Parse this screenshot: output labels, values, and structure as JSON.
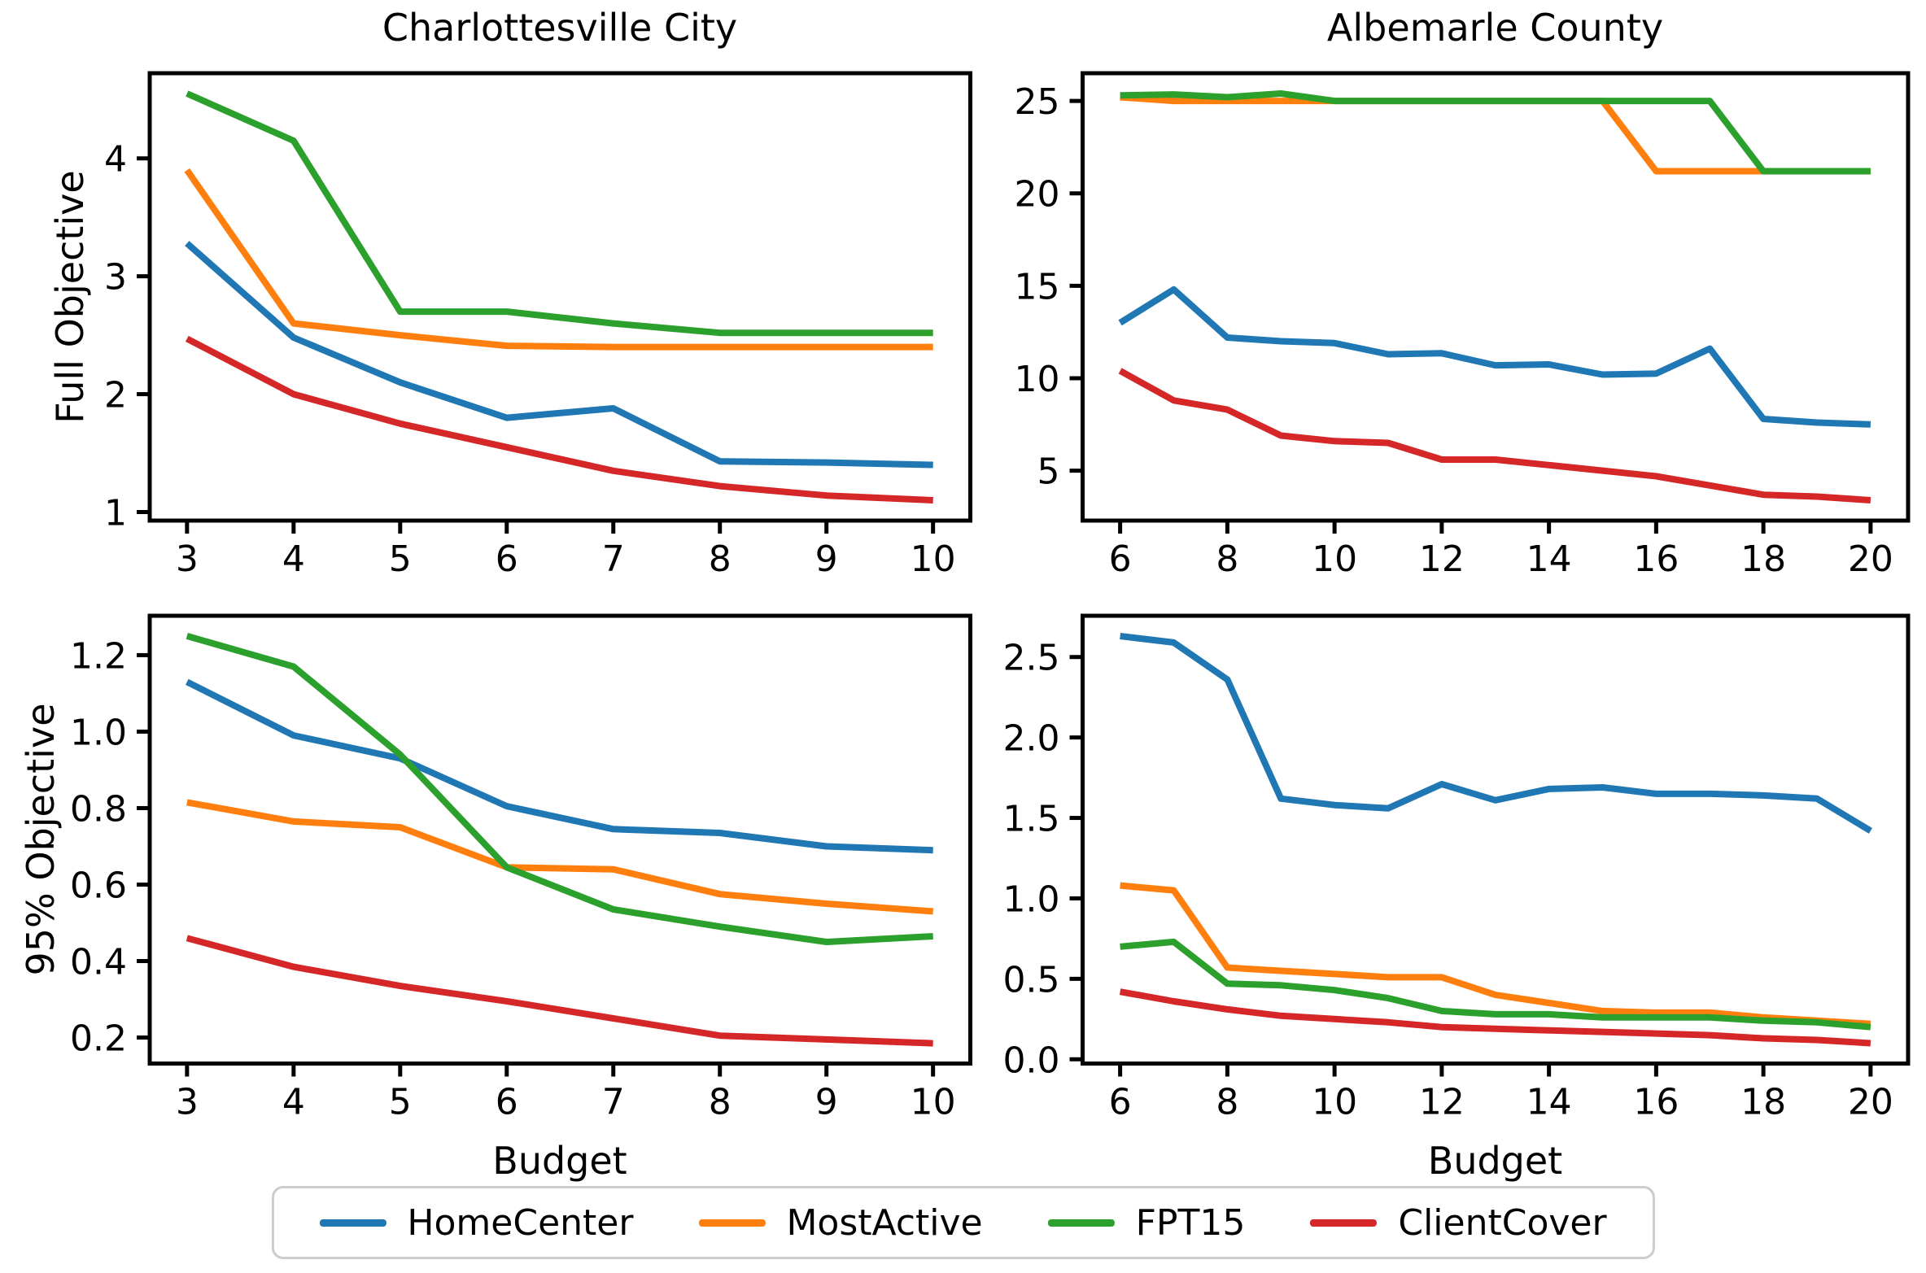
{
  "figure": {
    "background": "#ffffff"
  },
  "colors": {
    "HomeCenter": "#1f77b4",
    "MostActive": "#ff7f0e",
    "FPT15": "#2ca02c",
    "ClientCover": "#d62728"
  },
  "legend": {
    "items": [
      {
        "label": "HomeCenter",
        "color_key": "HomeCenter"
      },
      {
        "label": "MostActive",
        "color_key": "MostActive"
      },
      {
        "label": "FPT15",
        "color_key": "FPT15"
      },
      {
        "label": "ClientCover",
        "color_key": "ClientCover"
      }
    ]
  },
  "chart_data": [
    {
      "id": "full-charlottesville",
      "type": "line",
      "title": "Charlottesville City",
      "ylabel": "Full Objective",
      "x": [
        3,
        4,
        5,
        6,
        7,
        8,
        9,
        10
      ],
      "xlim": [
        2.65,
        10.35
      ],
      "ylim": [
        0.9275,
        4.7225
      ],
      "grid": false,
      "xticks": {
        "values": [
          3,
          4,
          5,
          6,
          7,
          8,
          9,
          10
        ],
        "labels": [
          "3",
          "4",
          "5",
          "6",
          "7",
          "8",
          "9",
          "10"
        ]
      },
      "yticks": {
        "values": [
          1,
          2,
          3,
          4
        ],
        "labels": [
          "1",
          "2",
          "3",
          "4"
        ]
      },
      "series": [
        {
          "name": "HomeCenter",
          "values": [
            3.28,
            2.48,
            2.1,
            1.8,
            1.88,
            1.43,
            1.42,
            1.4
          ]
        },
        {
          "name": "MostActive",
          "values": [
            3.9,
            2.6,
            2.5,
            2.41,
            2.4,
            2.4,
            2.4,
            2.4
          ]
        },
        {
          "name": "FPT15",
          "values": [
            4.55,
            4.15,
            2.7,
            2.7,
            2.6,
            2.52,
            2.52,
            2.52
          ]
        },
        {
          "name": "ClientCover",
          "values": [
            2.47,
            2.0,
            1.75,
            1.55,
            1.35,
            1.22,
            1.14,
            1.1
          ]
        }
      ]
    },
    {
      "id": "full-albemarle",
      "type": "line",
      "title": "Albemarle County",
      "x": [
        6,
        7,
        8,
        9,
        10,
        11,
        12,
        13,
        14,
        15,
        16,
        17,
        18,
        19,
        20
      ],
      "xlim": [
        5.3,
        20.7
      ],
      "ylim": [
        2.3,
        26.5
      ],
      "grid": false,
      "xticks": {
        "values": [
          6,
          8,
          10,
          12,
          14,
          16,
          18,
          20
        ],
        "labels": [
          "6",
          "8",
          "10",
          "12",
          "14",
          "16",
          "18",
          "20"
        ]
      },
      "yticks": {
        "values": [
          5,
          10,
          15,
          20,
          25
        ],
        "labels": [
          "5",
          "10",
          "15",
          "20",
          "25"
        ]
      },
      "series": [
        {
          "name": "HomeCenter",
          "values": [
            13.0,
            14.8,
            12.2,
            12.0,
            11.9,
            11.3,
            11.35,
            10.7,
            10.75,
            10.2,
            10.25,
            11.6,
            7.8,
            7.6,
            7.5
          ]
        },
        {
          "name": "MostActive",
          "values": [
            25.2,
            25.0,
            25.0,
            25.0,
            25.0,
            25.0,
            25.0,
            25.0,
            25.0,
            25.0,
            21.2,
            21.2,
            21.2,
            21.2,
            21.2
          ]
        },
        {
          "name": "FPT15",
          "values": [
            25.3,
            25.35,
            25.2,
            25.4,
            25.0,
            25.0,
            25.0,
            25.0,
            25.0,
            25.0,
            25.0,
            25.0,
            21.2,
            21.2,
            21.2
          ]
        },
        {
          "name": "ClientCover",
          "values": [
            10.4,
            8.8,
            8.3,
            6.9,
            6.6,
            6.5,
            5.6,
            5.6,
            5.3,
            5.0,
            4.7,
            4.2,
            3.7,
            3.6,
            3.4
          ]
        }
      ]
    },
    {
      "id": "p95-charlottesville",
      "type": "line",
      "ylabel": "95% Objective",
      "xlabel": "Budget",
      "x": [
        3,
        4,
        5,
        6,
        7,
        8,
        9,
        10
      ],
      "xlim": [
        2.65,
        10.35
      ],
      "ylim": [
        0.132,
        1.303
      ],
      "grid": false,
      "xticks": {
        "values": [
          3,
          4,
          5,
          6,
          7,
          8,
          9,
          10
        ],
        "labels": [
          "3",
          "4",
          "5",
          "6",
          "7",
          "8",
          "9",
          "10"
        ]
      },
      "yticks": {
        "values": [
          0.2,
          0.4,
          0.6,
          0.8,
          1.0,
          1.2
        ],
        "labels": [
          "0.2",
          "0.4",
          "0.6",
          "0.8",
          "1.0",
          "1.2"
        ]
      },
      "series": [
        {
          "name": "HomeCenter",
          "values": [
            1.13,
            0.99,
            0.93,
            0.805,
            0.745,
            0.735,
            0.7,
            0.69
          ]
        },
        {
          "name": "MostActive",
          "values": [
            0.815,
            0.765,
            0.75,
            0.645,
            0.64,
            0.575,
            0.55,
            0.53
          ]
        },
        {
          "name": "FPT15",
          "values": [
            1.25,
            1.17,
            0.94,
            0.645,
            0.535,
            0.49,
            0.45,
            0.465
          ]
        },
        {
          "name": "ClientCover",
          "values": [
            0.46,
            0.385,
            0.335,
            0.295,
            0.25,
            0.205,
            0.195,
            0.185
          ]
        }
      ]
    },
    {
      "id": "p95-albemarle",
      "type": "line",
      "xlabel": "Budget",
      "x": [
        6,
        7,
        8,
        9,
        10,
        11,
        12,
        13,
        14,
        15,
        16,
        17,
        18,
        19,
        20
      ],
      "xlim": [
        5.3,
        20.7
      ],
      "ylim": [
        -0.0265,
        2.7565
      ],
      "grid": false,
      "xticks": {
        "values": [
          6,
          8,
          10,
          12,
          14,
          16,
          18,
          20
        ],
        "labels": [
          "6",
          "8",
          "10",
          "12",
          "14",
          "16",
          "18",
          "20"
        ]
      },
      "yticks": {
        "values": [
          0.0,
          0.5,
          1.0,
          1.5,
          2.0,
          2.5
        ],
        "labels": [
          "0.0",
          "0.5",
          "1.0",
          "1.5",
          "2.0",
          "2.5"
        ]
      },
      "series": [
        {
          "name": "HomeCenter",
          "values": [
            2.63,
            2.59,
            2.36,
            1.62,
            1.58,
            1.56,
            1.71,
            1.61,
            1.68,
            1.69,
            1.65,
            1.65,
            1.64,
            1.62,
            1.42
          ]
        },
        {
          "name": "MostActive",
          "values": [
            1.08,
            1.05,
            0.57,
            0.55,
            0.53,
            0.51,
            0.51,
            0.4,
            0.35,
            0.3,
            0.29,
            0.29,
            0.26,
            0.24,
            0.22
          ]
        },
        {
          "name": "FPT15",
          "values": [
            0.7,
            0.73,
            0.47,
            0.46,
            0.43,
            0.38,
            0.3,
            0.28,
            0.28,
            0.26,
            0.26,
            0.26,
            0.24,
            0.23,
            0.2
          ]
        },
        {
          "name": "ClientCover",
          "values": [
            0.42,
            0.36,
            0.31,
            0.27,
            0.25,
            0.23,
            0.2,
            0.19,
            0.18,
            0.17,
            0.16,
            0.15,
            0.13,
            0.12,
            0.1
          ]
        }
      ]
    }
  ]
}
